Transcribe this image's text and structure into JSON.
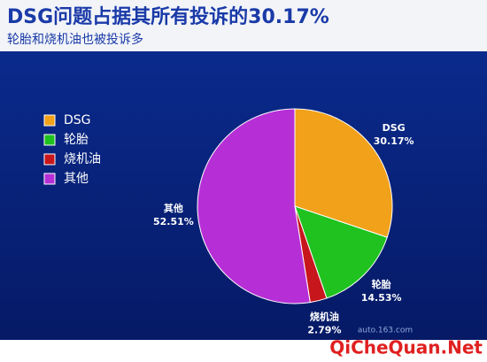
{
  "chart_data": {
    "type": "pie",
    "title": "DSG问题占据其所有投诉的30.17%",
    "subtitle": "轮胎和烧机油也被投诉多",
    "categories": [
      "DSG",
      "轮胎",
      "烧机油",
      "其他"
    ],
    "values": [
      30.17,
      14.53,
      2.79,
      52.51
    ],
    "value_labels": [
      "30.17%",
      "14.53%",
      "2.79%",
      "52.51%"
    ],
    "colors": [
      "#f2a11a",
      "#1fc21f",
      "#c8161d",
      "#b62fd6"
    ],
    "legend": "left",
    "watermarks": [
      "auto.163.com",
      "QiCheQuan.Net"
    ]
  }
}
